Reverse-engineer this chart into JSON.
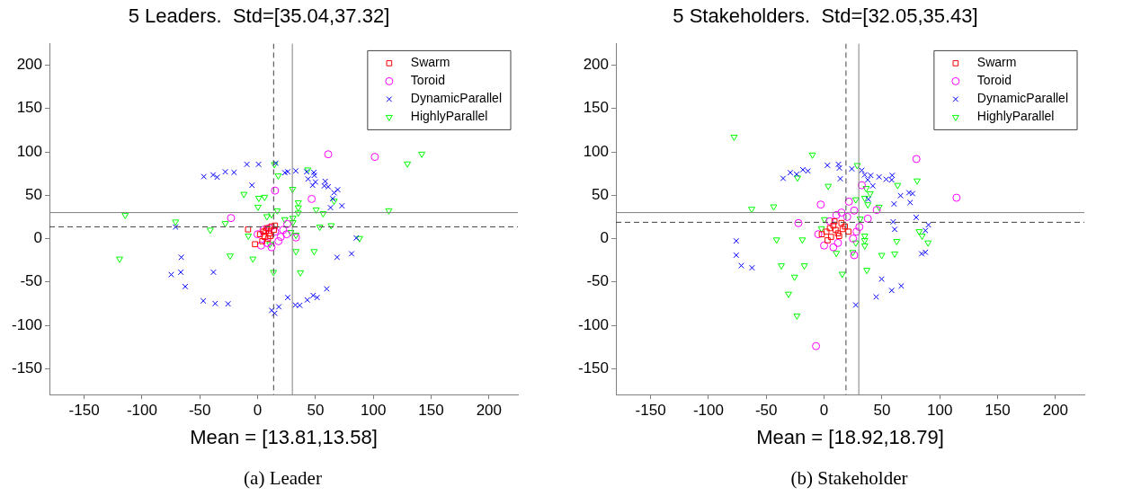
{
  "chart_data": [
    {
      "type": "scatter",
      "title": "5 Leaders.  Std=[35.04,37.32]",
      "xlabel": "Mean = [13.81,13.58]",
      "annotations": [
        "(a) Leader"
      ],
      "xlim": [
        -180,
        225
      ],
      "ylim": [
        -180,
        225
      ],
      "xticks": [
        -150,
        -100,
        -50,
        0,
        50,
        100,
        150,
        200
      ],
      "yticks": [
        -150,
        -100,
        -50,
        0,
        50,
        100,
        150,
        200
      ],
      "grid": false,
      "legend": "top right",
      "ref_lines": [
        {
          "axis": "x",
          "value": 30,
          "color": "#808080",
          "line_style": "solid"
        },
        {
          "axis": "y",
          "value": 30,
          "color": "#808080",
          "line_style": "solid"
        },
        {
          "axis": "x",
          "value": 13.81,
          "color": "#404040",
          "line_style": "dashed"
        },
        {
          "axis": "y",
          "value": 13.58,
          "color": "#404040",
          "line_style": "dashed"
        }
      ],
      "series": [
        {
          "name": "Swarm",
          "color": "#ff0000",
          "marker": "square",
          "x": [
            -8.3,
            -2.3,
            2,
            5,
            8,
            10,
            12,
            6,
            4,
            9,
            14,
            11,
            7,
            15
          ],
          "values": [
            10.6,
            -6.5,
            5,
            8,
            12,
            6,
            14,
            2,
            -3,
            0,
            10,
            3,
            9,
            15
          ]
        },
        {
          "name": "Toroid",
          "color": "#ff00ff",
          "marker": "circle",
          "x": [
            0,
            5,
            10,
            15,
            20,
            8,
            12,
            3,
            25,
            18,
            22,
            15,
            -23,
            61,
            101.3,
            46.7,
            33.1,
            25.6
          ],
          "values": [
            5,
            10,
            12,
            8,
            2,
            -5,
            -10,
            -8,
            5,
            -3,
            10,
            55.3,
            23.7,
            97.2,
            94.2,
            45.7,
            1.3,
            16.8
          ]
        },
        {
          "name": "DynamicParallel",
          "color": "#0000ff",
          "marker": "cross",
          "x": [
            -9.3,
            0.8,
            15.7,
            -46.5,
            -38.5,
            -35,
            -28,
            -20.4,
            -4.9,
            23.5,
            26,
            -71,
            -66,
            -74.7,
            -66.4,
            -38.2,
            -62.6,
            -47,
            -36.7,
            -25.6,
            12.1,
            14.7,
            18.3,
            26,
            33,
            42.4,
            48.6,
            49,
            43.6,
            50,
            47.5,
            58.4,
            57.6,
            61,
            69.2,
            66.1,
            64.9,
            63,
            72.9,
            85.3,
            68.7,
            81.2,
            59.7,
            32.6,
            36.4,
            42.9,
            48,
            51.4
          ],
          "values": [
            85.6,
            85.6,
            87,
            71.5,
            73.5,
            70.8,
            77,
            76.3,
            61.5,
            76,
            77,
            13.4,
            -21.6,
            -41.6,
            -38.8,
            -38.8,
            -55.3,
            -71.8,
            -74.9,
            -75.3,
            -82.8,
            -86.2,
            -78.7,
            -68,
            78,
            77,
            76.3,
            72.9,
            68.7,
            65.3,
            61.5,
            66,
            60.8,
            59.8,
            56.4,
            52.9,
            46,
            35.7,
            37.8,
            0.7,
            -21.6,
            -17.5,
            -58,
            -76.6,
            -77,
            -70.8,
            -65.6,
            -68
          ]
        },
        {
          "name": "HighlyParallel",
          "color": "#00ff00",
          "marker": "triangle",
          "x": [
            14.5,
            17.8,
            -11.9,
            1,
            6,
            0.3,
            -114.5,
            -71,
            -41,
            -28,
            8,
            11.9,
            17,
            -119.4,
            -23.8,
            -4.1,
            13.7,
            -8,
            10.6,
            23.5,
            43.4,
            30.2,
            35.1,
            35.1,
            35.1,
            30.5,
            30.5,
            50.6,
            56.6,
            66.1,
            53.7,
            63.6,
            28.7,
            33.1,
            88.1,
            33.1,
            48.8,
            37,
            113.4,
            129.5,
            141.9
          ],
          "values": [
            85.6,
            72.5,
            51.2,
            46.7,
            47.8,
            36.4,
            27.1,
            19.3,
            10,
            17.5,
            25.5,
            27.8,
            32.3,
            -23.4,
            -19.9,
            -23.4,
            -38.8,
            3.1,
            -6.5,
            22,
            79.4,
            57,
            41.5,
            35.7,
            29.6,
            23.7,
            18.6,
            33.3,
            28.9,
            43.3,
            13.4,
            15.1,
            7.2,
            4.1,
            0.3,
            -14.8,
            -14.8,
            -39.2,
            32.3,
            86.3,
            97.6
          ]
        }
      ]
    },
    {
      "type": "scatter",
      "title": "5 Stakeholders.  Std=[32.05,35.43]",
      "xlabel": "Mean = [18.92,18.79]",
      "annotations": [
        "(b) Stakeholder"
      ],
      "xlim": [
        -180,
        225
      ],
      "ylim": [
        -180,
        225
      ],
      "xticks": [
        -150,
        -100,
        -50,
        0,
        50,
        100,
        150,
        200
      ],
      "yticks": [
        -150,
        -100,
        -50,
        0,
        50,
        100,
        150,
        200
      ],
      "grid": false,
      "legend": "top right",
      "ref_lines": [
        {
          "axis": "x",
          "value": 30,
          "color": "#808080",
          "line_style": "solid"
        },
        {
          "axis": "y",
          "value": 30,
          "color": "#808080",
          "line_style": "solid"
        },
        {
          "axis": "x",
          "value": 18.92,
          "color": "#404040",
          "line_style": "dashed"
        },
        {
          "axis": "y",
          "value": 18.79,
          "color": "#404040",
          "line_style": "dashed"
        }
      ],
      "series": [
        {
          "name": "Swarm",
          "color": "#ff0000",
          "marker": "square",
          "x": [
            -2,
            2,
            5,
            8,
            10,
            12,
            15,
            18,
            21,
            6,
            9,
            13,
            16,
            3
          ],
          "values": [
            5,
            8,
            12,
            15,
            10,
            6,
            18,
            14,
            8,
            2,
            20,
            3,
            11,
            -2
          ]
        },
        {
          "name": "Toroid",
          "color": "#ff00ff",
          "marker": "circle",
          "x": [
            -7,
            -2.9,
            -22.2,
            21.5,
            10.6,
            79.8,
            114.5,
            32.6,
            45.5,
            37.8,
            30.5,
            26,
            26,
            -5,
            0,
            5,
            12,
            20,
            25,
            28,
            15,
            8
          ],
          "values": [
            -124,
            39.2,
            17.8,
            42.6,
            27.1,
            91.8,
            47.1,
            61.5,
            33,
            23,
            13.4,
            32.3,
            -19.2,
            5,
            -8,
            20,
            -5,
            25,
            0,
            8,
            30,
            -10
          ]
        },
        {
          "name": "DynamicParallel",
          "color": "#0000ff",
          "marker": "cross",
          "x": [
            -76,
            -76,
            -71.6,
            -62.3,
            -35.4,
            -29.2,
            -23.8,
            -18.4,
            -14,
            2.9,
            12.4,
            13.2,
            14,
            24,
            27.4,
            32.6,
            35.1,
            40.3,
            37.8,
            47.5,
            53.7,
            58.9,
            58.4,
            42.1,
            38.2,
            66.1,
            73.4,
            76.5,
            60.5,
            74.4,
            79.6,
            59.7,
            61,
            90.2,
            87.6,
            84.3,
            87.6,
            49.8,
            58.4,
            66.7,
            45
          ],
          "values": [
            -2.7,
            -19.2,
            -31.2,
            -33.7,
            69.4,
            76,
            74.2,
            79.4,
            78,
            84.5,
            85.6,
            81.4,
            69,
            80.4,
            -76.6,
            78.7,
            73.5,
            72.9,
            67.7,
            71.1,
            68.4,
            72.9,
            67.7,
            60.8,
            45.4,
            49.5,
            52.9,
            51.9,
            39.9,
            41.6,
            24.4,
            19.3,
            10.6,
            15.8,
            9.3,
            -17.5,
            -15.8,
            -46.7,
            -59.8,
            -54.6,
            -67.3
          ]
        },
        {
          "name": "HighlyParallel",
          "color": "#00ff00",
          "marker": "triangle",
          "x": [
            -77.8,
            -10.1,
            -23,
            3.6,
            -62.6,
            -43.6,
            -41.1,
            -18.8,
            -37,
            -17.1,
            -25.6,
            -30.8,
            -23.5,
            10.6,
            15.7,
            -2.3,
            0.3,
            28.7,
            63.6,
            80.4,
            36.4,
            39.8,
            35.1,
            37.8,
            47.5,
            27.4,
            31.2,
            35.1,
            35.1,
            35.1,
            27.4,
            49.8,
            61,
            62.8,
            82.2,
            84.7,
            89.9,
            37,
            24.8
          ],
          "values": [
            117.2,
            96.6,
            70.1,
            60.5,
            34,
            36.8,
            -1.3,
            -1.3,
            -31.2,
            -31.2,
            -44.3,
            -63.9,
            -89,
            -16.8,
            -40.9,
            11.6,
            22,
            84.5,
            61.5,
            66.7,
            58,
            51.9,
            46.7,
            39.2,
            36.4,
            45,
            22.7,
            3.1,
            -2.1,
            -8.2,
            -4.8,
            -19.2,
            -17.5,
            -3.1,
            8.2,
            3.1,
            -4.8,
            -36.4,
            -15.8
          ]
        }
      ]
    }
  ]
}
